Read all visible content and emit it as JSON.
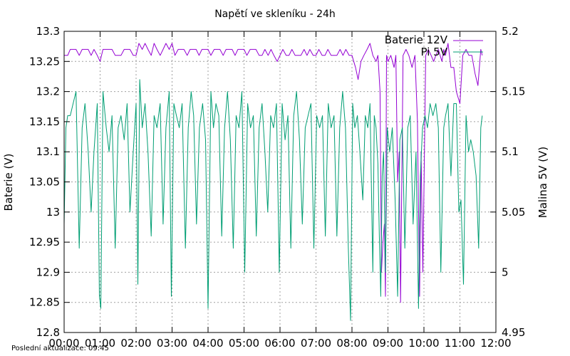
{
  "chart_data": {
    "type": "line",
    "title": "Napětí ve skleníku - 24h",
    "ylabel": "Baterie (V)",
    "y2label": "Malina 5V (V)",
    "x_ticks": [
      "00:00",
      "01:00",
      "02:00",
      "03:00",
      "04:00",
      "05:00",
      "06:00",
      "07:00",
      "08:00",
      "09:00",
      "10:00",
      "11:00",
      "12:00"
    ],
    "xlim_hours": [
      0,
      12
    ],
    "ylim": [
      12.8,
      13.3
    ],
    "y_ticks": [
      "12.8",
      "12.85",
      "12.9",
      "12.95",
      "13",
      "13.05",
      "13.1",
      "13.15",
      "13.2",
      "13.25",
      "13.3"
    ],
    "y2lim": [
      4.95,
      5.2
    ],
    "y2_ticks": [
      "4.95",
      "5",
      "5.05",
      "5.1",
      "5.15",
      "5.2"
    ],
    "grid": true,
    "legend_position": "top-right",
    "footer": "Poslední aktualizace: 09:45",
    "series": [
      {
        "name": "Baterie 12V",
        "axis": "left",
        "color": "#9400d3",
        "points": [
          [
            0.0,
            13.26
          ],
          [
            0.1,
            13.26
          ],
          [
            0.17,
            13.27
          ],
          [
            0.33,
            13.27
          ],
          [
            0.42,
            13.26
          ],
          [
            0.5,
            13.27
          ],
          [
            0.67,
            13.27
          ],
          [
            0.75,
            13.26
          ],
          [
            0.83,
            13.27
          ],
          [
            0.92,
            13.26
          ],
          [
            1.0,
            13.25
          ],
          [
            1.08,
            13.27
          ],
          [
            1.33,
            13.27
          ],
          [
            1.42,
            13.26
          ],
          [
            1.58,
            13.26
          ],
          [
            1.67,
            13.27
          ],
          [
            1.83,
            13.27
          ],
          [
            1.92,
            13.26
          ],
          [
            2.0,
            13.26
          ],
          [
            2.08,
            13.28
          ],
          [
            2.17,
            13.27
          ],
          [
            2.25,
            13.28
          ],
          [
            2.33,
            13.27
          ],
          [
            2.42,
            13.26
          ],
          [
            2.5,
            13.28
          ],
          [
            2.58,
            13.27
          ],
          [
            2.67,
            13.26
          ],
          [
            2.75,
            13.27
          ],
          [
            2.83,
            13.28
          ],
          [
            2.92,
            13.27
          ],
          [
            3.0,
            13.28
          ],
          [
            3.08,
            13.26
          ],
          [
            3.17,
            13.27
          ],
          [
            3.33,
            13.27
          ],
          [
            3.42,
            13.26
          ],
          [
            3.5,
            13.27
          ],
          [
            3.67,
            13.27
          ],
          [
            3.75,
            13.26
          ],
          [
            3.83,
            13.27
          ],
          [
            4.0,
            13.27
          ],
          [
            4.08,
            13.26
          ],
          [
            4.17,
            13.27
          ],
          [
            4.33,
            13.27
          ],
          [
            4.42,
            13.26
          ],
          [
            4.5,
            13.27
          ],
          [
            4.67,
            13.27
          ],
          [
            4.75,
            13.26
          ],
          [
            4.83,
            13.27
          ],
          [
            5.0,
            13.27
          ],
          [
            5.08,
            13.26
          ],
          [
            5.17,
            13.27
          ],
          [
            5.33,
            13.27
          ],
          [
            5.42,
            13.26
          ],
          [
            5.5,
            13.26
          ],
          [
            5.58,
            13.27
          ],
          [
            5.67,
            13.26
          ],
          [
            5.75,
            13.27
          ],
          [
            5.83,
            13.26
          ],
          [
            5.92,
            13.25
          ],
          [
            6.0,
            13.26
          ],
          [
            6.08,
            13.27
          ],
          [
            6.17,
            13.26
          ],
          [
            6.25,
            13.26
          ],
          [
            6.33,
            13.27
          ],
          [
            6.42,
            13.26
          ],
          [
            6.58,
            13.26
          ],
          [
            6.67,
            13.27
          ],
          [
            6.75,
            13.26
          ],
          [
            6.83,
            13.27
          ],
          [
            6.92,
            13.26
          ],
          [
            7.0,
            13.26
          ],
          [
            7.08,
            13.27
          ],
          [
            7.17,
            13.26
          ],
          [
            7.25,
            13.26
          ],
          [
            7.33,
            13.27
          ],
          [
            7.42,
            13.26
          ],
          [
            7.58,
            13.26
          ],
          [
            7.67,
            13.27
          ],
          [
            7.75,
            13.26
          ],
          [
            7.83,
            13.27
          ],
          [
            7.92,
            13.26
          ],
          [
            8.0,
            13.26
          ],
          [
            8.05,
            13.25
          ],
          [
            8.1,
            13.24
          ],
          [
            8.17,
            13.22
          ],
          [
            8.25,
            13.25
          ],
          [
            8.33,
            13.26
          ],
          [
            8.42,
            13.27
          ],
          [
            8.5,
            13.28
          ],
          [
            8.58,
            13.26
          ],
          [
            8.67,
            13.25
          ],
          [
            8.72,
            13.26
          ],
          [
            8.78,
            13.2
          ],
          [
            8.82,
            12.9
          ],
          [
            8.86,
            12.95
          ],
          [
            8.9,
            12.98
          ],
          [
            8.93,
            12.86
          ],
          [
            8.96,
            13.26
          ],
          [
            9.0,
            13.25
          ],
          [
            9.08,
            13.26
          ],
          [
            9.17,
            13.24
          ],
          [
            9.22,
            13.26
          ],
          [
            9.27,
            13.05
          ],
          [
            9.31,
            13.1
          ],
          [
            9.35,
            12.85
          ],
          [
            9.42,
            13.26
          ],
          [
            9.5,
            13.27
          ],
          [
            9.58,
            13.26
          ],
          [
            9.67,
            13.24
          ],
          [
            9.75,
            13.26
          ],
          [
            9.82,
            13.15
          ],
          [
            9.88,
            12.86
          ],
          [
            9.92,
            13.1
          ],
          [
            9.97,
            12.9
          ],
          [
            10.05,
            13.26
          ],
          [
            10.12,
            13.27
          ],
          [
            10.2,
            13.26
          ],
          [
            10.27,
            13.25
          ],
          [
            10.33,
            13.26
          ],
          [
            10.4,
            13.27
          ],
          [
            10.45,
            13.26
          ],
          [
            10.5,
            13.25
          ],
          [
            10.55,
            13.27
          ],
          [
            10.6,
            13.26
          ],
          [
            10.67,
            13.28
          ],
          [
            10.75,
            13.24
          ],
          [
            10.83,
            13.24
          ],
          [
            10.9,
            13.2
          ],
          [
            11.0,
            13.18
          ],
          [
            11.08,
            13.26
          ],
          [
            11.17,
            13.27
          ],
          [
            11.25,
            13.26
          ],
          [
            11.33,
            13.26
          ],
          [
            11.42,
            13.23
          ],
          [
            11.5,
            13.21
          ],
          [
            11.58,
            13.27
          ],
          [
            11.62,
            13.26
          ]
        ]
      },
      {
        "name": "Pi 5V",
        "axis": "right",
        "color": "#009e73",
        "points": [
          [
            0.0,
            5.04
          ],
          [
            0.05,
            5.12
          ],
          [
            0.1,
            5.13
          ],
          [
            0.17,
            5.13
          ],
          [
            0.25,
            5.14
          ],
          [
            0.33,
            5.15
          ],
          [
            0.42,
            5.02
          ],
          [
            0.5,
            5.12
          ],
          [
            0.58,
            5.14
          ],
          [
            0.67,
            5.1
          ],
          [
            0.75,
            5.05
          ],
          [
            0.83,
            5.1
          ],
          [
            0.92,
            5.14
          ],
          [
            0.98,
            4.98
          ],
          [
            1.02,
            4.97
          ],
          [
            1.08,
            5.15
          ],
          [
            1.17,
            5.12
          ],
          [
            1.25,
            5.1
          ],
          [
            1.33,
            5.13
          ],
          [
            1.42,
            5.02
          ],
          [
            1.5,
            5.12
          ],
          [
            1.58,
            5.13
          ],
          [
            1.67,
            5.11
          ],
          [
            1.75,
            5.14
          ],
          [
            1.83,
            5.05
          ],
          [
            1.92,
            5.1
          ],
          [
            2.0,
            5.14
          ],
          [
            2.05,
            4.99
          ],
          [
            2.1,
            5.16
          ],
          [
            2.17,
            5.12
          ],
          [
            2.25,
            5.14
          ],
          [
            2.33,
            5.1
          ],
          [
            2.42,
            5.03
          ],
          [
            2.5,
            5.13
          ],
          [
            2.58,
            5.12
          ],
          [
            2.67,
            5.14
          ],
          [
            2.75,
            5.04
          ],
          [
            2.83,
            5.12
          ],
          [
            2.92,
            5.15
          ],
          [
            2.98,
            4.98
          ],
          [
            3.05,
            5.14
          ],
          [
            3.12,
            5.13
          ],
          [
            3.2,
            5.12
          ],
          [
            3.28,
            5.14
          ],
          [
            3.37,
            5.02
          ],
          [
            3.45,
            5.12
          ],
          [
            3.53,
            5.15
          ],
          [
            3.6,
            5.13
          ],
          [
            3.68,
            5.04
          ],
          [
            3.76,
            5.12
          ],
          [
            3.85,
            5.14
          ],
          [
            3.93,
            5.11
          ],
          [
            4.0,
            4.97
          ],
          [
            4.08,
            5.15
          ],
          [
            4.15,
            5.12
          ],
          [
            4.22,
            5.14
          ],
          [
            4.3,
            5.13
          ],
          [
            4.38,
            5.03
          ],
          [
            4.46,
            5.12
          ],
          [
            4.54,
            5.15
          ],
          [
            4.62,
            5.11
          ],
          [
            4.7,
            5.02
          ],
          [
            4.78,
            5.13
          ],
          [
            4.86,
            5.12
          ],
          [
            4.94,
            5.15
          ],
          [
            5.02,
            5.0
          ],
          [
            5.1,
            5.14
          ],
          [
            5.18,
            5.12
          ],
          [
            5.26,
            5.13
          ],
          [
            5.34,
            5.03
          ],
          [
            5.42,
            5.12
          ],
          [
            5.5,
            5.14
          ],
          [
            5.58,
            5.1
          ],
          [
            5.66,
            5.05
          ],
          [
            5.74,
            5.13
          ],
          [
            5.82,
            5.12
          ],
          [
            5.9,
            5.14
          ],
          [
            5.98,
            5.0
          ],
          [
            6.06,
            5.14
          ],
          [
            6.14,
            5.11
          ],
          [
            6.22,
            5.13
          ],
          [
            6.3,
            5.02
          ],
          [
            6.38,
            5.13
          ],
          [
            6.46,
            5.15
          ],
          [
            6.54,
            5.11
          ],
          [
            6.62,
            5.04
          ],
          [
            6.7,
            5.12
          ],
          [
            6.78,
            5.13
          ],
          [
            6.86,
            5.14
          ],
          [
            6.94,
            5.02
          ],
          [
            7.02,
            5.13
          ],
          [
            7.1,
            5.12
          ],
          [
            7.18,
            5.13
          ],
          [
            7.26,
            5.03
          ],
          [
            7.34,
            5.14
          ],
          [
            7.42,
            5.12
          ],
          [
            7.5,
            5.13
          ],
          [
            7.58,
            5.03
          ],
          [
            7.66,
            5.12
          ],
          [
            7.74,
            5.15
          ],
          [
            7.82,
            5.12
          ],
          [
            7.9,
            5.02
          ],
          [
            7.96,
            4.96
          ],
          [
            8.02,
            5.14
          ],
          [
            8.08,
            5.12
          ],
          [
            8.15,
            5.13
          ],
          [
            8.22,
            5.1
          ],
          [
            8.3,
            5.06
          ],
          [
            8.37,
            5.13
          ],
          [
            8.44,
            5.12
          ],
          [
            8.5,
            5.14
          ],
          [
            8.58,
            5.0
          ],
          [
            8.62,
            5.13
          ],
          [
            8.67,
            5.12
          ],
          [
            8.72,
            5.09
          ],
          [
            8.76,
            5.03
          ],
          [
            8.8,
            4.98
          ],
          [
            8.84,
            5.08
          ],
          [
            8.88,
            5.1
          ],
          [
            8.93,
            5.0
          ],
          [
            8.98,
            5.12
          ],
          [
            9.05,
            5.1
          ],
          [
            9.12,
            5.12
          ],
          [
            9.2,
            5.06
          ],
          [
            9.27,
            4.98
          ],
          [
            9.33,
            5.11
          ],
          [
            9.4,
            5.12
          ],
          [
            9.47,
            5.02
          ],
          [
            9.55,
            5.12
          ],
          [
            9.62,
            5.13
          ],
          [
            9.7,
            5.04
          ],
          [
            9.78,
            5.1
          ],
          [
            9.85,
            4.97
          ],
          [
            9.9,
            5.08
          ],
          [
            9.96,
            5.12
          ],
          [
            10.03,
            5.13
          ],
          [
            10.1,
            5.12
          ],
          [
            10.17,
            5.14
          ],
          [
            10.25,
            5.13
          ],
          [
            10.33,
            5.14
          ],
          [
            10.4,
            5.12
          ],
          [
            10.47,
            5.0
          ],
          [
            10.55,
            5.12
          ],
          [
            10.6,
            5.13
          ],
          [
            10.67,
            5.14
          ],
          [
            10.75,
            5.08
          ],
          [
            10.83,
            5.14
          ],
          [
            10.9,
            5.14
          ],
          [
            10.97,
            5.05
          ],
          [
            11.03,
            5.06
          ],
          [
            11.1,
            4.99
          ],
          [
            11.17,
            5.13
          ],
          [
            11.24,
            5.1
          ],
          [
            11.3,
            5.11
          ],
          [
            11.37,
            5.1
          ],
          [
            11.45,
            5.08
          ],
          [
            11.52,
            5.02
          ],
          [
            11.58,
            5.12
          ],
          [
            11.62,
            5.13
          ]
        ]
      }
    ]
  }
}
